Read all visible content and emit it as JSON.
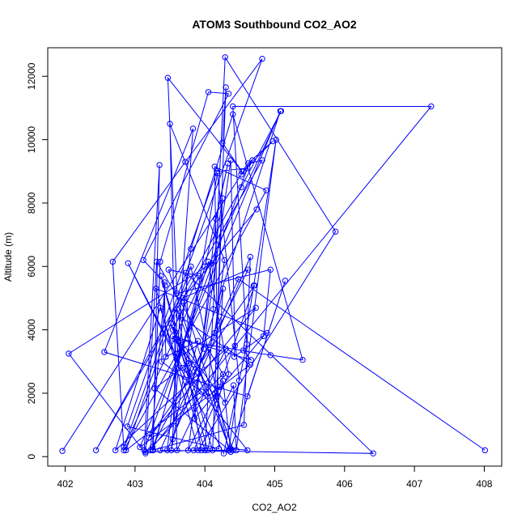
{
  "chart_data": {
    "type": "line",
    "title": "ATOM3 Southbound CO2_AO2",
    "xlabel": "CO2_AO2",
    "ylabel": "Altitude (m)",
    "xlim": [
      401.75,
      408.25
    ],
    "ylim": [
      -300,
      12900
    ],
    "xticks": [
      "402",
      "403",
      "404",
      "405",
      "406",
      "407",
      "408"
    ],
    "yticks": [
      "0",
      "2000",
      "4000",
      "6000",
      "8000",
      "10000",
      "12000"
    ],
    "xtick_values": [
      402,
      403,
      404,
      405,
      406,
      407,
      408
    ],
    "ytick_values": [
      0,
      2000,
      4000,
      6000,
      8000,
      10000,
      12000
    ],
    "grid": false,
    "legend": "none",
    "marker": "open-circle",
    "color": "#0000ff",
    "series": [
      {
        "x": [
          401.96,
          404.52,
          404.68,
          404.55,
          404.97,
          404.62,
          404.82,
          402.44,
          404.52,
          405.09,
          402.84,
          404.82,
          403.72,
          402.68,
          402.84,
          404.88,
          404.14,
          404.2,
          402.89,
          404.17,
          404.61,
          403.13,
          403.35,
          403.26,
          404.0,
          404.33,
          404.16,
          403.85,
          404.84,
          404.94,
          403.6,
          403.47,
          404.53,
          404.25,
          404.3,
          404.14,
          404.4,
          403.84,
          404.34,
          404.05,
          403.25,
          404.56,
          404.65,
          403.46,
          403.8,
          404.4,
          405.4,
          404.94,
          403.57,
          403.85,
          404.16,
          404.26,
          404.14,
          404.28,
          403.5,
          403.6,
          404.3,
          402.72,
          403.36,
          404.0,
          404.12,
          404.29,
          405.87,
          403.9,
          403.3,
          404.89,
          404.42,
          404.43,
          404.37,
          403.98,
          403.22,
          403.43,
          403.38,
          403.95,
          402.87,
          403.8,
          404.34,
          404.49,
          404.18,
          403.52,
          403.7,
          404.35,
          403.28,
          403.77,
          403.54,
          404.66,
          404.55,
          404.7,
          405.02,
          404.45,
          404.41,
          404.29,
          403.54,
          403.92,
          403.48,
          404.04,
          403.51,
          403.81,
          404.62,
          403.68,
          404.74,
          404.1,
          402.05,
          403.15,
          404.26,
          403.31,
          403.15,
          403.95,
          403.62,
          404.65,
          403.07,
          405.08,
          403.54,
          403.6,
          404.37,
          404.26,
          404.04,
          403.37,
          404.11,
          404.25,
          403.76,
          404.21,
          404.71,
          403.2,
          404.73,
          403.6,
          403.83,
          402.56,
          404.61,
          405.15,
          404.37,
          404.61,
          403.68,
          402.9,
          404.27,
          404.6,
          404.4,
          407.24,
          403.25,
          403.36,
          404.05,
          404.34,
          403.12,
          403.42,
          403.44,
          403.9,
          403.78,
          403.73,
          406.41,
          403.36,
          404.48,
          408.01
        ],
        "y": [
          180,
          8900,
          9350,
          9000,
          9950,
          9250,
          9350,
          200,
          8500,
          10900,
          300,
          12550,
          9300,
          6150,
          200,
          8400,
          9150,
          250,
          950,
          9000,
          9100,
          200,
          9200,
          200,
          6000,
          9250,
          7500,
          1200,
          3800,
          5900,
          5150,
          11950,
          9000,
          9900,
          11650,
          2000,
          200,
          200,
          2600,
          6150,
          200,
          1000,
          6300,
          200,
          6550,
          10800,
          3050,
          3200,
          3700,
          2900,
          1800,
          5300,
          3900,
          6200,
          10500,
          200,
          3400,
          200,
          4700,
          200,
          4650,
          12600,
          7100,
          200,
          5300,
          3900,
          3150,
          3500,
          9350,
          3400,
          200,
          5400,
          3000,
          2050,
          200,
          6000,
          200,
          2400,
          8950,
          200,
          4900,
          200,
          2150,
          2950,
          3800,
          3050,
          3350,
          5400,
          10000,
          200,
          2250,
          1700,
          4000,
          5700,
          5900,
          1900,
          4200,
          2400,
          5900,
          5000,
          7800,
          6100,
          3250,
          100,
          2600,
          6150,
          150,
          200,
          4450,
          2900,
          300,
          10900,
          550,
          4650,
          150,
          2400,
          200,
          5700,
          200,
          8150,
          200,
          2200,
          5400,
          600,
          4700,
          3100,
          10350,
          3300,
          1900,
          5550,
          250,
          200,
          2800,
          6100,
          100,
          3550,
          11050,
          11050,
          300,
          6150,
          11500,
          11450,
          6200,
          5500,
          3150,
          3650,
          2650,
          5800,
          100,
          200,
          5600,
          200
        ]
      }
    ]
  }
}
